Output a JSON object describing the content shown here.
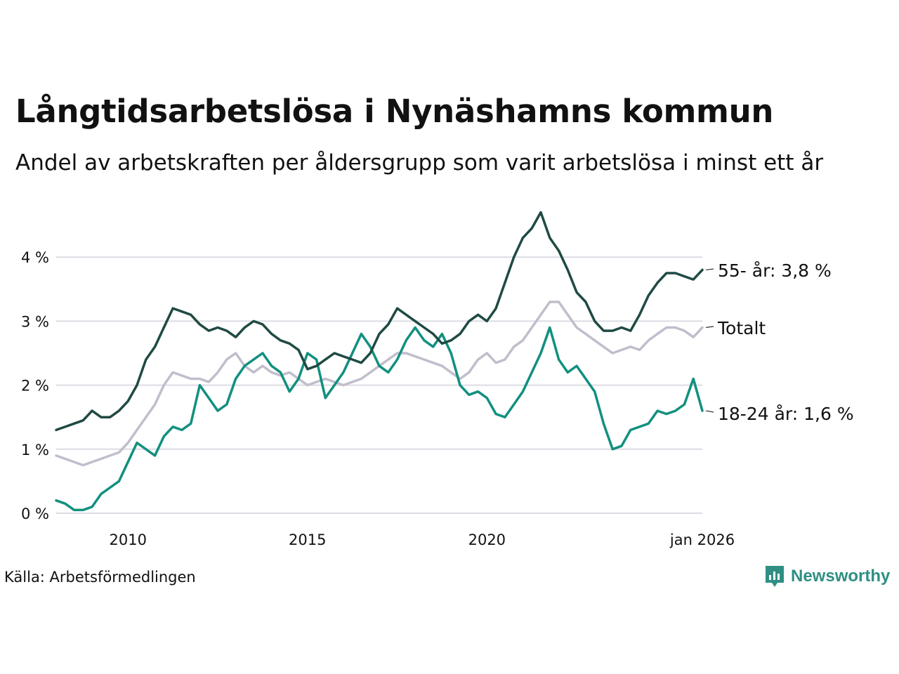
{
  "header": {
    "title": "Långtidsarbetslösa i Nynäshamns kommun",
    "subtitle": "Andel av arbetskraften per åldersgrupp som varit arbetslösa i minst ett år"
  },
  "footer": {
    "source": "Källa: Arbetsförmedlingen",
    "brand": "Newsworthy"
  },
  "colors": {
    "series_55": "#1f4a43",
    "series_total": "#c2bdcc",
    "series_18_24": "#12907f",
    "grid": "#dcdce4",
    "brand": "#2f8f83"
  },
  "chart_data": {
    "type": "line",
    "title": "Långtidsarbetslösa i Nynäshamns kommun",
    "subtitle": "Andel av arbetskraften per åldersgrupp som varit arbetslösa i minst ett år",
    "xlabel": "",
    "ylabel": "",
    "ylim": [
      0,
      4.8
    ],
    "xlim": [
      2008.0,
      2026.0
    ],
    "yticks": [
      {
        "value": 0,
        "label": "0 %"
      },
      {
        "value": 1,
        "label": "1 %"
      },
      {
        "value": 2,
        "label": "2 %"
      },
      {
        "value": 3,
        "label": "3 %"
      },
      {
        "value": 4,
        "label": "4 %"
      }
    ],
    "xticks": [
      {
        "value": 2010,
        "label": "2010"
      },
      {
        "value": 2015,
        "label": "2015"
      },
      {
        "value": 2020,
        "label": "2020"
      },
      {
        "value": 2026,
        "label": "jan 2026"
      }
    ],
    "series": [
      {
        "name": "55- år",
        "label": "55- år: 3,8 %",
        "color": "#1f4a43",
        "x": [
          2008.0,
          2008.25,
          2008.5,
          2008.75,
          2009.0,
          2009.25,
          2009.5,
          2009.75,
          2010.0,
          2010.25,
          2010.5,
          2010.75,
          2011.0,
          2011.25,
          2011.5,
          2011.75,
          2012.0,
          2012.25,
          2012.5,
          2012.75,
          2013.0,
          2013.25,
          2013.5,
          2013.75,
          2014.0,
          2014.25,
          2014.5,
          2014.75,
          2015.0,
          2015.25,
          2015.5,
          2015.75,
          2016.0,
          2016.25,
          2016.5,
          2016.75,
          2017.0,
          2017.25,
          2017.5,
          2017.75,
          2018.0,
          2018.25,
          2018.5,
          2018.75,
          2019.0,
          2019.25,
          2019.5,
          2019.75,
          2020.0,
          2020.25,
          2020.5,
          2020.75,
          2021.0,
          2021.25,
          2021.5,
          2021.75,
          2022.0,
          2022.25,
          2022.5,
          2022.75,
          2023.0,
          2023.25,
          2023.5,
          2023.75,
          2024.0,
          2024.25,
          2024.5,
          2024.75,
          2025.0,
          2025.25,
          2025.5,
          2025.75,
          2026.0
        ],
        "values": [
          1.3,
          1.35,
          1.4,
          1.45,
          1.6,
          1.5,
          1.5,
          1.6,
          1.75,
          2.0,
          2.4,
          2.6,
          2.9,
          3.2,
          3.15,
          3.1,
          2.95,
          2.85,
          2.9,
          2.85,
          2.75,
          2.9,
          3.0,
          2.95,
          2.8,
          2.7,
          2.65,
          2.55,
          2.25,
          2.3,
          2.4,
          2.5,
          2.45,
          2.4,
          2.35,
          2.5,
          2.8,
          2.95,
          3.2,
          3.1,
          3.0,
          2.9,
          2.8,
          2.65,
          2.7,
          2.8,
          3.0,
          3.1,
          3.0,
          3.2,
          3.6,
          4.0,
          4.3,
          4.45,
          4.7,
          4.3,
          4.1,
          3.8,
          3.45,
          3.3,
          3.0,
          2.85,
          2.85,
          2.9,
          2.85,
          3.1,
          3.4,
          3.6,
          3.75,
          3.75,
          3.7,
          3.65,
          3.8
        ]
      },
      {
        "name": "Totalt",
        "label": "Totalt",
        "color": "#c2bdcc",
        "x": [
          2008.0,
          2008.25,
          2008.5,
          2008.75,
          2009.0,
          2009.25,
          2009.5,
          2009.75,
          2010.0,
          2010.25,
          2010.5,
          2010.75,
          2011.0,
          2011.25,
          2011.5,
          2011.75,
          2012.0,
          2012.25,
          2012.5,
          2012.75,
          2013.0,
          2013.25,
          2013.5,
          2013.75,
          2014.0,
          2014.25,
          2014.5,
          2014.75,
          2015.0,
          2015.25,
          2015.5,
          2015.75,
          2016.0,
          2016.25,
          2016.5,
          2016.75,
          2017.0,
          2017.25,
          2017.5,
          2017.75,
          2018.0,
          2018.25,
          2018.5,
          2018.75,
          2019.0,
          2019.25,
          2019.5,
          2019.75,
          2020.0,
          2020.25,
          2020.5,
          2020.75,
          2021.0,
          2021.25,
          2021.5,
          2021.75,
          2022.0,
          2022.25,
          2022.5,
          2022.75,
          2023.0,
          2023.25,
          2023.5,
          2023.75,
          2024.0,
          2024.25,
          2024.5,
          2024.75,
          2025.0,
          2025.25,
          2025.5,
          2025.75,
          2026.0
        ],
        "values": [
          0.9,
          0.85,
          0.8,
          0.75,
          0.8,
          0.85,
          0.9,
          0.95,
          1.1,
          1.3,
          1.5,
          1.7,
          2.0,
          2.2,
          2.15,
          2.1,
          2.1,
          2.05,
          2.2,
          2.4,
          2.5,
          2.3,
          2.2,
          2.3,
          2.2,
          2.15,
          2.2,
          2.1,
          2.0,
          2.05,
          2.1,
          2.05,
          2.0,
          2.05,
          2.1,
          2.2,
          2.3,
          2.4,
          2.5,
          2.5,
          2.45,
          2.4,
          2.35,
          2.3,
          2.2,
          2.1,
          2.2,
          2.4,
          2.5,
          2.35,
          2.4,
          2.6,
          2.7,
          2.9,
          3.1,
          3.3,
          3.3,
          3.1,
          2.9,
          2.8,
          2.7,
          2.6,
          2.5,
          2.55,
          2.6,
          2.55,
          2.7,
          2.8,
          2.9,
          2.9,
          2.85,
          2.75,
          2.9
        ]
      },
      {
        "name": "18-24 år",
        "label": "18-24 år: 1,6 %",
        "color": "#12907f",
        "x": [
          2008.0,
          2008.25,
          2008.5,
          2008.75,
          2009.0,
          2009.25,
          2009.5,
          2009.75,
          2010.0,
          2010.25,
          2010.5,
          2010.75,
          2011.0,
          2011.25,
          2011.5,
          2011.75,
          2012.0,
          2012.25,
          2012.5,
          2012.75,
          2013.0,
          2013.25,
          2013.5,
          2013.75,
          2014.0,
          2014.25,
          2014.5,
          2014.75,
          2015.0,
          2015.25,
          2015.5,
          2015.75,
          2016.0,
          2016.25,
          2016.5,
          2016.75,
          2017.0,
          2017.25,
          2017.5,
          2017.75,
          2018.0,
          2018.25,
          2018.5,
          2018.75,
          2019.0,
          2019.25,
          2019.5,
          2019.75,
          2020.0,
          2020.25,
          2020.5,
          2020.75,
          2021.0,
          2021.25,
          2021.5,
          2021.75,
          2022.0,
          2022.25,
          2022.5,
          2022.75,
          2023.0,
          2023.25,
          2023.5,
          2023.75,
          2024.0,
          2024.25,
          2024.5,
          2024.75,
          2025.0,
          2025.25,
          2025.5,
          2025.75,
          2026.0
        ],
        "values": [
          0.2,
          0.15,
          0.05,
          0.05,
          0.1,
          0.3,
          0.4,
          0.5,
          0.8,
          1.1,
          1.0,
          0.9,
          1.2,
          1.35,
          1.3,
          1.4,
          2.0,
          1.8,
          1.6,
          1.7,
          2.1,
          2.3,
          2.4,
          2.5,
          2.3,
          2.2,
          1.9,
          2.1,
          2.5,
          2.4,
          1.8,
          2.0,
          2.2,
          2.5,
          2.8,
          2.6,
          2.3,
          2.2,
          2.4,
          2.7,
          2.9,
          2.7,
          2.6,
          2.8,
          2.5,
          2.0,
          1.85,
          1.9,
          1.8,
          1.55,
          1.5,
          1.7,
          1.9,
          2.2,
          2.5,
          2.9,
          2.4,
          2.2,
          2.3,
          2.1,
          1.9,
          1.4,
          1.0,
          1.05,
          1.3,
          1.35,
          1.4,
          1.6,
          1.55,
          1.6,
          1.7,
          2.1,
          1.6
        ]
      }
    ]
  }
}
